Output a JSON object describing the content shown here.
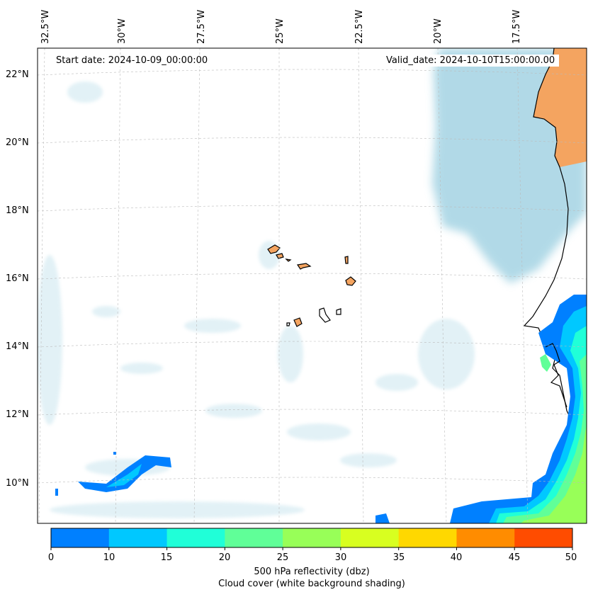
{
  "map": {
    "lon_labels": [
      "32.5°W",
      "30°W",
      "27.5°W",
      "25°W",
      "22.5°W",
      "20°W",
      "17.5°W"
    ],
    "lat_labels": [
      "22°N",
      "20°N",
      "18°N",
      "16°N",
      "14°N",
      "12°N",
      "10°N"
    ],
    "start_date": "Start date: 2024-10-09_00:00:00",
    "valid_date": "Valid_date: 2024-10-10T15:00:00.00",
    "land_color": "#f4a460",
    "cloud_color": "#add8e6",
    "coastline_color": "#000000"
  },
  "colorbar": {
    "ticks": [
      "0",
      "10",
      "15",
      "20",
      "25",
      "30",
      "35",
      "40",
      "45",
      "50"
    ],
    "colors": [
      "#0080ff",
      "#00c8ff",
      "#20ffd8",
      "#60ff98",
      "#98ff58",
      "#d8ff20",
      "#ffd800",
      "#ff8c00",
      "#ff4c00"
    ],
    "label_line1": "500 hPa reflectivity (dbz)",
    "label_line2": "Cloud cover (white background shading)"
  }
}
